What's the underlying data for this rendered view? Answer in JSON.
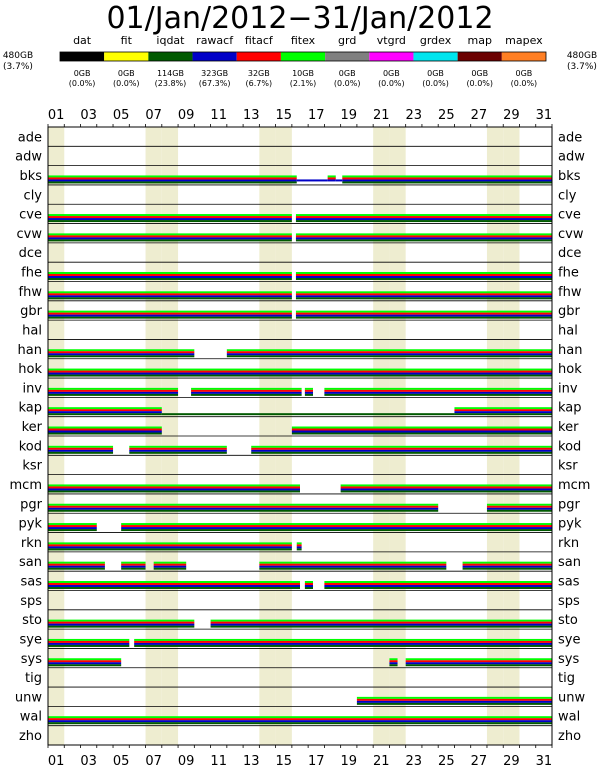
{
  "title": "01/Jan/2012−31/Jan/2012",
  "total_label": {
    "size": "480GB",
    "pct": "(3.7%)"
  },
  "colors": {
    "dat": "#000000",
    "fit": "#ffff00",
    "iqdat": "#005a00",
    "rawacf": "#0000c8",
    "fitacf": "#ff0000",
    "fitex": "#00ff00",
    "grd": "#808080",
    "vtgrd": "#ff00ff",
    "grdex": "#00e5ee",
    "map": "#6b0000",
    "mapex": "#ff7f24",
    "weekend": "#eeedd0"
  },
  "chart_data": {
    "type": "table",
    "x_day_labels": [
      "01",
      "03",
      "05",
      "07",
      "09",
      "11",
      "13",
      "15",
      "17",
      "19",
      "21",
      "23",
      "25",
      "27",
      "29",
      "31"
    ],
    "legend": [
      {
        "key": "dat",
        "label": "dat",
        "size": "0GB",
        "pct": "(0.0%)"
      },
      {
        "key": "fit",
        "label": "fit",
        "size": "0GB",
        "pct": "(0.0%)"
      },
      {
        "key": "iqdat",
        "label": "iqdat",
        "size": "114GB",
        "pct": "(23.8%)"
      },
      {
        "key": "rawacf",
        "label": "rawacf",
        "size": "323GB",
        "pct": "(67.3%)"
      },
      {
        "key": "fitacf",
        "label": "fitacf",
        "size": "32GB",
        "pct": "(6.7%)"
      },
      {
        "key": "fitex",
        "label": "fitex",
        "size": "10GB",
        "pct": "(2.1%)"
      },
      {
        "key": "grd",
        "label": "grd",
        "size": "0GB",
        "pct": "(0.0%)"
      },
      {
        "key": "vtgrd",
        "label": "vtgrd",
        "size": "0GB",
        "pct": "(0.0%)"
      },
      {
        "key": "grdex",
        "label": "grdex",
        "size": "0GB",
        "pct": "(0.0%)"
      },
      {
        "key": "map",
        "label": "map",
        "size": "0GB",
        "pct": "(0.0%)"
      },
      {
        "key": "mapex",
        "label": "mapex",
        "size": "0GB",
        "pct": "(0.0%)"
      }
    ],
    "sites": [
      {
        "name": "ade",
        "segments": []
      },
      {
        "name": "adw",
        "segments": []
      },
      {
        "name": "bks",
        "segments": [
          {
            "from": 1,
            "to": 16.3,
            "types": [
              "fitex",
              "fitacf",
              "rawacf",
              "iqdat"
            ]
          },
          {
            "from": 16.3,
            "to": 18.2,
            "types": [
              "rawacf"
            ]
          },
          {
            "from": 18.2,
            "to": 18.7,
            "types": [
              "fitex",
              "fitacf",
              "rawacf"
            ]
          },
          {
            "from": 18.7,
            "to": 19.1,
            "types": [
              "rawacf"
            ]
          },
          {
            "from": 19.1,
            "to": 32,
            "types": [
              "fitex",
              "fitacf",
              "rawacf",
              "iqdat"
            ]
          }
        ]
      },
      {
        "name": "cly",
        "segments": []
      },
      {
        "name": "cve",
        "segments": [
          {
            "from": 1,
            "to": 16.0,
            "types": [
              "fitex",
              "fitacf",
              "rawacf",
              "iqdat"
            ]
          },
          {
            "from": 16.25,
            "to": 32,
            "types": [
              "fitex",
              "fitacf",
              "rawacf",
              "iqdat"
            ]
          }
        ]
      },
      {
        "name": "cvw",
        "segments": [
          {
            "from": 1,
            "to": 16.0,
            "types": [
              "fitex",
              "fitacf",
              "rawacf",
              "iqdat"
            ]
          },
          {
            "from": 16.25,
            "to": 32,
            "types": [
              "fitex",
              "fitacf",
              "rawacf",
              "iqdat"
            ]
          }
        ]
      },
      {
        "name": "dce",
        "segments": []
      },
      {
        "name": "fhe",
        "segments": [
          {
            "from": 1,
            "to": 16.0,
            "types": [
              "fitex",
              "fitacf",
              "rawacf",
              "iqdat"
            ]
          },
          {
            "from": 16.25,
            "to": 32,
            "types": [
              "fitex",
              "fitacf",
              "rawacf",
              "iqdat"
            ]
          }
        ]
      },
      {
        "name": "fhw",
        "segments": [
          {
            "from": 1,
            "to": 16.0,
            "types": [
              "fitex",
              "fitacf",
              "rawacf",
              "iqdat"
            ]
          },
          {
            "from": 16.25,
            "to": 32,
            "types": [
              "fitex",
              "fitacf",
              "rawacf",
              "iqdat"
            ]
          }
        ]
      },
      {
        "name": "gbr",
        "segments": [
          {
            "from": 1,
            "to": 16.0,
            "types": [
              "fitex",
              "fitacf",
              "rawacf",
              "iqdat"
            ]
          },
          {
            "from": 16.25,
            "to": 32,
            "types": [
              "fitex",
              "fitacf",
              "rawacf",
              "iqdat"
            ]
          }
        ]
      },
      {
        "name": "hal",
        "segments": []
      },
      {
        "name": "han",
        "segments": [
          {
            "from": 1,
            "to": 10.0,
            "types": [
              "fitex",
              "fitacf",
              "rawacf",
              "iqdat"
            ]
          },
          {
            "from": 12.0,
            "to": 32,
            "types": [
              "fitex",
              "fitacf",
              "rawacf",
              "iqdat"
            ]
          }
        ]
      },
      {
        "name": "hok",
        "segments": [
          {
            "from": 1,
            "to": 32,
            "types": [
              "fitex",
              "fitacf",
              "rawacf",
              "iqdat"
            ]
          }
        ]
      },
      {
        "name": "inv",
        "segments": [
          {
            "from": 1,
            "to": 9.0,
            "types": [
              "fitex",
              "fitacf",
              "rawacf",
              "iqdat"
            ]
          },
          {
            "from": 9.8,
            "to": 16.6,
            "types": [
              "fitex",
              "fitacf",
              "rawacf",
              "iqdat"
            ]
          },
          {
            "from": 16.8,
            "to": 17.3,
            "types": [
              "fitex",
              "fitacf",
              "rawacf",
              "iqdat"
            ]
          },
          {
            "from": 18.0,
            "to": 32,
            "types": [
              "fitex",
              "fitacf",
              "rawacf",
              "iqdat"
            ]
          }
        ]
      },
      {
        "name": "kap",
        "segments": [
          {
            "from": 1,
            "to": 8.0,
            "types": [
              "fitex",
              "fitacf",
              "rawacf",
              "iqdat"
            ]
          },
          {
            "from": 8.0,
            "to": 26.0,
            "types": [
              "iqdat"
            ]
          },
          {
            "from": 26.0,
            "to": 32,
            "types": [
              "fitex",
              "fitacf",
              "rawacf",
              "iqdat"
            ]
          }
        ]
      },
      {
        "name": "ker",
        "segments": [
          {
            "from": 1,
            "to": 8.0,
            "types": [
              "fitex",
              "fitacf",
              "rawacf",
              "iqdat"
            ]
          },
          {
            "from": 16.0,
            "to": 32,
            "types": [
              "fitex",
              "fitacf",
              "rawacf",
              "iqdat"
            ]
          }
        ]
      },
      {
        "name": "kod",
        "segments": [
          {
            "from": 1,
            "to": 5.0,
            "types": [
              "fitex",
              "fitacf",
              "rawacf",
              "iqdat"
            ]
          },
          {
            "from": 6.0,
            "to": 12.0,
            "types": [
              "fitex",
              "fitacf",
              "rawacf",
              "iqdat"
            ]
          },
          {
            "from": 13.5,
            "to": 32,
            "types": [
              "fitex",
              "fitacf",
              "rawacf",
              "iqdat"
            ]
          }
        ]
      },
      {
        "name": "ksr",
        "segments": []
      },
      {
        "name": "mcm",
        "segments": [
          {
            "from": 1,
            "to": 16.5,
            "types": [
              "fitex",
              "fitacf",
              "rawacf",
              "iqdat"
            ]
          },
          {
            "from": 19.0,
            "to": 32,
            "types": [
              "fitex",
              "fitacf",
              "rawacf",
              "iqdat"
            ]
          }
        ]
      },
      {
        "name": "pgr",
        "segments": [
          {
            "from": 1,
            "to": 25.0,
            "types": [
              "fitex",
              "fitacf",
              "rawacf",
              "iqdat"
            ]
          },
          {
            "from": 28.0,
            "to": 32,
            "types": [
              "fitex",
              "fitacf",
              "rawacf",
              "iqdat"
            ]
          }
        ]
      },
      {
        "name": "pyk",
        "segments": [
          {
            "from": 1,
            "to": 4.0,
            "types": [
              "fitex",
              "fitacf",
              "rawacf",
              "iqdat"
            ]
          },
          {
            "from": 5.5,
            "to": 32,
            "types": [
              "fitex",
              "fitacf",
              "rawacf",
              "iqdat"
            ]
          }
        ]
      },
      {
        "name": "rkn",
        "segments": [
          {
            "from": 1,
            "to": 16.0,
            "types": [
              "fitex",
              "fitacf",
              "rawacf",
              "iqdat"
            ]
          },
          {
            "from": 16.3,
            "to": 16.6,
            "types": [
              "fitex",
              "fitacf",
              "rawacf",
              "iqdat"
            ]
          }
        ]
      },
      {
        "name": "san",
        "segments": [
          {
            "from": 1,
            "to": 4.5,
            "types": [
              "fitex",
              "fitacf",
              "rawacf",
              "iqdat"
            ]
          },
          {
            "from": 5.5,
            "to": 7.0,
            "types": [
              "fitex",
              "fitacf",
              "rawacf",
              "iqdat"
            ]
          },
          {
            "from": 7.5,
            "to": 9.5,
            "types": [
              "fitex",
              "fitacf",
              "rawacf",
              "iqdat"
            ]
          },
          {
            "from": 14.0,
            "to": 25.5,
            "types": [
              "fitex",
              "fitacf",
              "rawacf",
              "iqdat"
            ]
          },
          {
            "from": 26.5,
            "to": 32,
            "types": [
              "fitex",
              "fitacf",
              "rawacf",
              "iqdat"
            ]
          }
        ]
      },
      {
        "name": "sas",
        "segments": [
          {
            "from": 1,
            "to": 16.5,
            "types": [
              "fitex",
              "fitacf",
              "rawacf",
              "iqdat"
            ]
          },
          {
            "from": 16.8,
            "to": 17.3,
            "types": [
              "fitex",
              "fitacf",
              "rawacf",
              "iqdat"
            ]
          },
          {
            "from": 18.0,
            "to": 32,
            "types": [
              "fitex",
              "fitacf",
              "rawacf",
              "iqdat"
            ]
          }
        ]
      },
      {
        "name": "sps",
        "segments": []
      },
      {
        "name": "sto",
        "segments": [
          {
            "from": 1,
            "to": 10.0,
            "types": [
              "fitex",
              "fitacf",
              "rawacf",
              "iqdat"
            ]
          },
          {
            "from": 11.0,
            "to": 32,
            "types": [
              "fitex",
              "fitacf",
              "rawacf",
              "iqdat"
            ]
          }
        ]
      },
      {
        "name": "sye",
        "segments": [
          {
            "from": 1,
            "to": 6.0,
            "types": [
              "fitex",
              "fitacf",
              "rawacf",
              "iqdat"
            ]
          },
          {
            "from": 6.3,
            "to": 32,
            "types": [
              "fitex",
              "fitacf",
              "rawacf",
              "iqdat"
            ]
          }
        ]
      },
      {
        "name": "sys",
        "segments": [
          {
            "from": 1,
            "to": 5.5,
            "types": [
              "fitex",
              "fitacf",
              "rawacf",
              "iqdat"
            ]
          },
          {
            "from": 22.0,
            "to": 22.5,
            "types": [
              "fitex",
              "fitacf",
              "rawacf",
              "iqdat"
            ]
          },
          {
            "from": 23.0,
            "to": 32,
            "types": [
              "fitex",
              "fitacf",
              "rawacf",
              "iqdat"
            ]
          }
        ]
      },
      {
        "name": "tig",
        "segments": []
      },
      {
        "name": "unw",
        "segments": [
          {
            "from": 20.0,
            "to": 32,
            "types": [
              "fitex",
              "fitacf",
              "rawacf",
              "iqdat"
            ]
          }
        ]
      },
      {
        "name": "wal",
        "segments": [
          {
            "from": 1,
            "to": 32,
            "types": [
              "fitex",
              "fitacf",
              "rawacf",
              "iqdat"
            ]
          }
        ]
      },
      {
        "name": "zho",
        "segments": []
      }
    ]
  }
}
